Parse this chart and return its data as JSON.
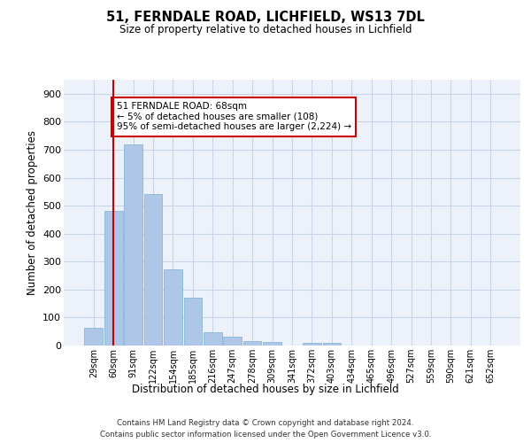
{
  "title1": "51, FERNDALE ROAD, LICHFIELD, WS13 7DL",
  "title2": "Size of property relative to detached houses in Lichfield",
  "xlabel": "Distribution of detached houses by size in Lichfield",
  "ylabel": "Number of detached properties",
  "categories": [
    "29sqm",
    "60sqm",
    "91sqm",
    "122sqm",
    "154sqm",
    "185sqm",
    "216sqm",
    "247sqm",
    "278sqm",
    "309sqm",
    "341sqm",
    "372sqm",
    "403sqm",
    "434sqm",
    "465sqm",
    "496sqm",
    "527sqm",
    "559sqm",
    "590sqm",
    "621sqm",
    "652sqm"
  ],
  "values": [
    63,
    480,
    718,
    543,
    271,
    170,
    46,
    32,
    17,
    13,
    0,
    8,
    8,
    0,
    0,
    0,
    0,
    0,
    0,
    0,
    0
  ],
  "bar_color": "#aec6e8",
  "bar_edge_color": "#7ab0d4",
  "grid_color": "#c8d4e8",
  "background_color": "#edf2fa",
  "vline_x": 1,
  "vline_color": "#cc0000",
  "annotation_text": "51 FERNDALE ROAD: 68sqm\n← 5% of detached houses are smaller (108)\n95% of semi-detached houses are larger (2,224) →",
  "annotation_box_color": "#ffffff",
  "annotation_box_edge_color": "#cc0000",
  "ylim": [
    0,
    950
  ],
  "yticks": [
    0,
    100,
    200,
    300,
    400,
    500,
    600,
    700,
    800,
    900
  ],
  "footer1": "Contains HM Land Registry data © Crown copyright and database right 2024.",
  "footer2": "Contains public sector information licensed under the Open Government Licence v3.0."
}
